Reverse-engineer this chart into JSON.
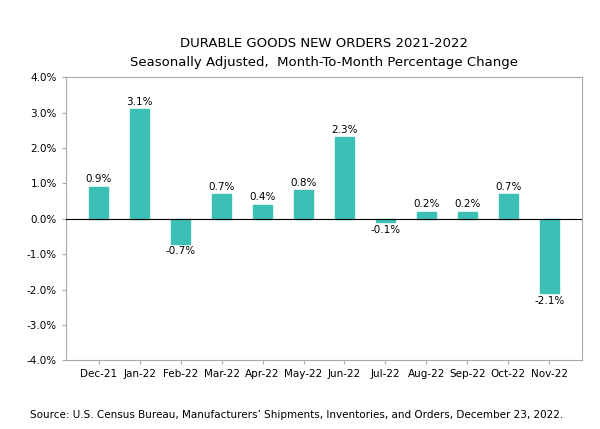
{
  "title_line1": "DURABLE GOODS NEW ORDERS 2021-2022",
  "title_line2": "Seasonally Adjusted,  Month-To-Month Percentage Change",
  "categories": [
    "Dec-21",
    "Jan-22",
    "Feb-22",
    "Mar-22",
    "Apr-22",
    "May-22",
    "Jun-22",
    "Jul-22",
    "Aug-22",
    "Sep-22",
    "Oct-22",
    "Nov-22"
  ],
  "values": [
    0.9,
    3.1,
    -0.7,
    0.7,
    0.4,
    0.8,
    2.3,
    -0.1,
    0.2,
    0.2,
    0.7,
    -2.1
  ],
  "labels": [
    "0.9%",
    "3.1%",
    "-0.7%",
    "0.7%",
    "0.4%",
    "0.8%",
    "2.3%",
    "-0.1%",
    "0.2%",
    "0.2%",
    "0.7%",
    "-2.1%"
  ],
  "bar_color": "#3CBFB4",
  "ylim": [
    -4.0,
    4.0
  ],
  "yticks": [
    -4.0,
    -3.0,
    -2.0,
    -1.0,
    0.0,
    1.0,
    2.0,
    3.0,
    4.0
  ],
  "background_color": "#ffffff",
  "source_text": "Source: U.S. Census Bureau, Manufacturers’ Shipments, Inventories, and Orders, December 23, 2022.",
  "title_fontsize": 9.5,
  "subtitle_fontsize": 8.5,
  "label_fontsize": 7.5,
  "tick_fontsize": 7.5,
  "source_fontsize": 7.5,
  "bar_width": 0.45
}
